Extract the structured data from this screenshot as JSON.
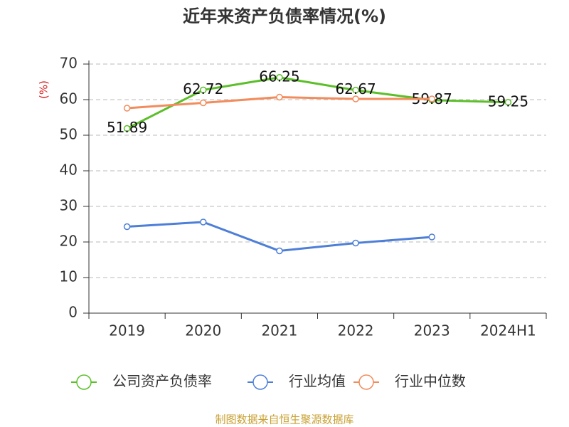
{
  "chart_data": {
    "type": "line",
    "title": "近年来资产负债率情况(%)",
    "y_label": "(%)",
    "source": "制图数据来自恒生聚源数据库",
    "categories": [
      "2019",
      "2020",
      "2021",
      "2022",
      "2023",
      "2024H1"
    ],
    "series": [
      {
        "name": "公司资产负债率",
        "color": "#5cbf2a",
        "values": [
          51.89,
          62.72,
          66.25,
          62.67,
          59.87,
          59.25
        ],
        "labels": true
      },
      {
        "name": "行业均值",
        "color": "#4e7fd8",
        "values": [
          24.3,
          25.6,
          17.5,
          19.7,
          21.4,
          null
        ]
      },
      {
        "name": "行业中位数",
        "color": "#f28c5c",
        "values": [
          57.6,
          59.1,
          60.7,
          60.2,
          60.2,
          null
        ]
      }
    ],
    "ylim": [
      0,
      70
    ],
    "yticks": [
      0,
      10,
      20,
      30,
      40,
      50,
      60,
      70
    ],
    "grid": true
  }
}
